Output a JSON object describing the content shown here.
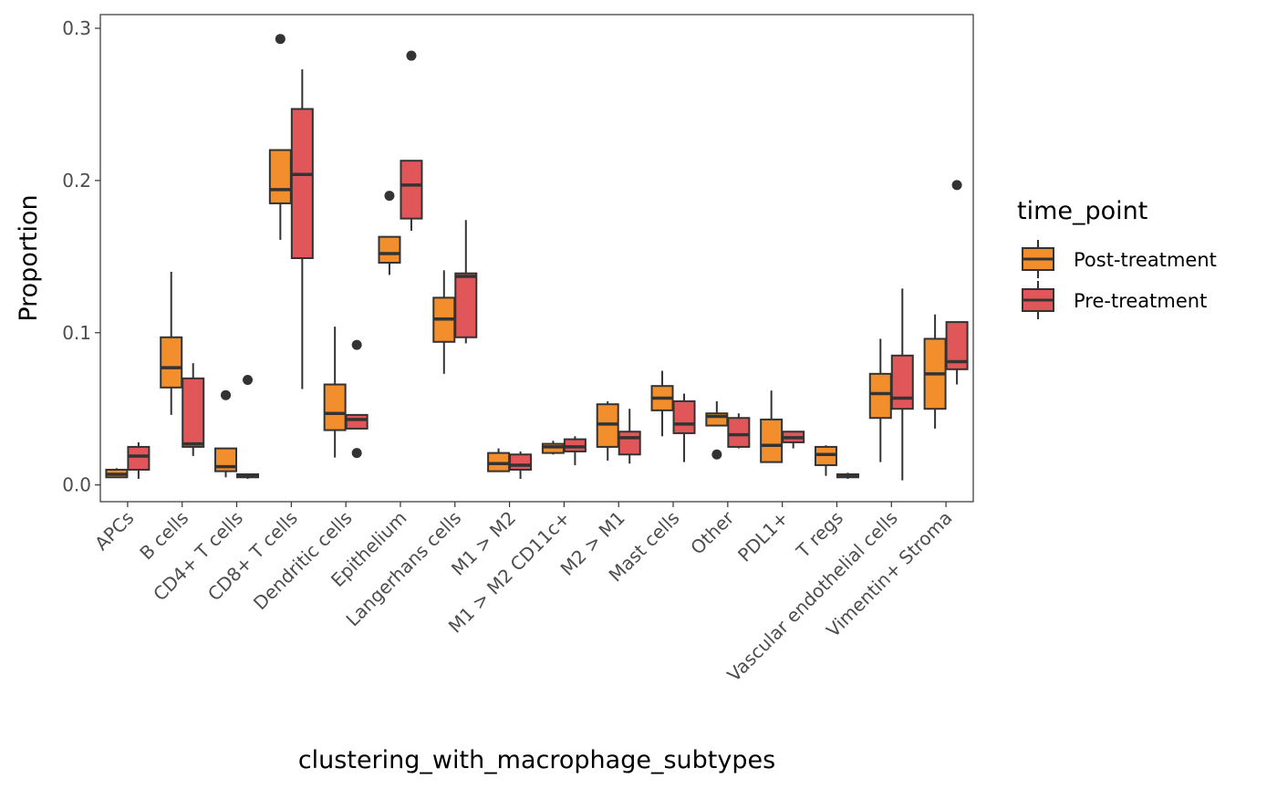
{
  "chart_data": {
    "type": "boxplot",
    "xlabel": "clustering_with_macrophage_subtypes",
    "ylabel": "Proportion",
    "ylim": [
      -0.011,
      0.309
    ],
    "yticks": [
      "0.0",
      "0.1",
      "0.2",
      "0.3"
    ],
    "ytick_values": [
      0.0,
      0.1,
      0.2,
      0.3
    ],
    "grid": false,
    "legend_position": "right",
    "legend_title": "time_point",
    "categories": [
      "APCs",
      "B cells",
      "CD4+ T cells",
      "CD8+ T cells",
      "Dendritic cells",
      "Epithelium",
      "Langerhans cells",
      "M1 > M2",
      "M1 > M2 CD11c+",
      "M2 > M1",
      "Mast cells",
      "Other",
      "PDL1+",
      "T regs",
      "Vascular endothelial cells",
      "Vimentin+ Stroma"
    ],
    "series": [
      {
        "name": "Post-treatment",
        "color": "#F28E2B",
        "boxes": [
          {
            "min": 0.005,
            "q1": 0.005,
            "median": 0.007,
            "q3": 0.01,
            "max": 0.011,
            "outliers": []
          },
          {
            "min": 0.046,
            "q1": 0.064,
            "median": 0.077,
            "q3": 0.097,
            "max": 0.14,
            "outliers": []
          },
          {
            "min": 0.005,
            "q1": 0.009,
            "median": 0.012,
            "q3": 0.024,
            "max": 0.024,
            "outliers": [
              0.059
            ]
          },
          {
            "min": 0.161,
            "q1": 0.185,
            "median": 0.194,
            "q3": 0.22,
            "max": 0.22,
            "outliers": [
              0.293
            ]
          },
          {
            "min": 0.018,
            "q1": 0.036,
            "median": 0.047,
            "q3": 0.066,
            "max": 0.104,
            "outliers": []
          },
          {
            "min": 0.138,
            "q1": 0.146,
            "median": 0.152,
            "q3": 0.163,
            "max": 0.163,
            "outliers": [
              0.19
            ]
          },
          {
            "min": 0.073,
            "q1": 0.094,
            "median": 0.109,
            "q3": 0.123,
            "max": 0.141,
            "outliers": []
          },
          {
            "min": 0.009,
            "q1": 0.009,
            "median": 0.014,
            "q3": 0.021,
            "max": 0.024,
            "outliers": []
          },
          {
            "min": 0.02,
            "q1": 0.021,
            "median": 0.025,
            "q3": 0.027,
            "max": 0.029,
            "outliers": []
          },
          {
            "min": 0.016,
            "q1": 0.025,
            "median": 0.04,
            "q3": 0.053,
            "max": 0.055,
            "outliers": []
          },
          {
            "min": 0.032,
            "q1": 0.049,
            "median": 0.057,
            "q3": 0.065,
            "max": 0.075,
            "outliers": []
          },
          {
            "min": 0.039,
            "q1": 0.039,
            "median": 0.045,
            "q3": 0.047,
            "max": 0.055,
            "outliers": [
              0.02
            ]
          },
          {
            "min": 0.015,
            "q1": 0.015,
            "median": 0.026,
            "q3": 0.043,
            "max": 0.062,
            "outliers": []
          },
          {
            "min": 0.006,
            "q1": 0.013,
            "median": 0.02,
            "q3": 0.025,
            "max": 0.026,
            "outliers": []
          },
          {
            "min": 0.015,
            "q1": 0.044,
            "median": 0.06,
            "q3": 0.073,
            "max": 0.096,
            "outliers": []
          },
          {
            "min": 0.037,
            "q1": 0.05,
            "median": 0.073,
            "q3": 0.096,
            "max": 0.112,
            "outliers": []
          }
        ]
      },
      {
        "name": "Pre-treatment",
        "color": "#E15759",
        "boxes": [
          {
            "min": 0.004,
            "q1": 0.01,
            "median": 0.019,
            "q3": 0.025,
            "max": 0.028,
            "outliers": []
          },
          {
            "min": 0.019,
            "q1": 0.025,
            "median": 0.027,
            "q3": 0.07,
            "max": 0.08,
            "outliers": []
          },
          {
            "min": 0.004,
            "q1": 0.005,
            "median": 0.006,
            "q3": 0.007,
            "max": 0.007,
            "outliers": [
              0.069
            ]
          },
          {
            "min": 0.063,
            "q1": 0.149,
            "median": 0.204,
            "q3": 0.247,
            "max": 0.273,
            "outliers": []
          },
          {
            "min": 0.037,
            "q1": 0.037,
            "median": 0.043,
            "q3": 0.046,
            "max": 0.046,
            "outliers": [
              0.092,
              0.021
            ]
          },
          {
            "min": 0.167,
            "q1": 0.175,
            "median": 0.197,
            "q3": 0.213,
            "max": 0.213,
            "outliers": [
              0.282
            ]
          },
          {
            "min": 0.093,
            "q1": 0.097,
            "median": 0.137,
            "q3": 0.139,
            "max": 0.174,
            "outliers": []
          },
          {
            "min": 0.004,
            "q1": 0.01,
            "median": 0.013,
            "q3": 0.02,
            "max": 0.022,
            "outliers": []
          },
          {
            "min": 0.013,
            "q1": 0.022,
            "median": 0.025,
            "q3": 0.03,
            "max": 0.032,
            "outliers": []
          },
          {
            "min": 0.014,
            "q1": 0.02,
            "median": 0.031,
            "q3": 0.035,
            "max": 0.05,
            "outliers": []
          },
          {
            "min": 0.015,
            "q1": 0.034,
            "median": 0.04,
            "q3": 0.055,
            "max": 0.06,
            "outliers": []
          },
          {
            "min": 0.024,
            "q1": 0.025,
            "median": 0.033,
            "q3": 0.044,
            "max": 0.047,
            "outliers": []
          },
          {
            "min": 0.024,
            "q1": 0.028,
            "median": 0.031,
            "q3": 0.035,
            "max": 0.035,
            "outliers": []
          },
          {
            "min": 0.004,
            "q1": 0.005,
            "median": 0.006,
            "q3": 0.007,
            "max": 0.008,
            "outliers": []
          },
          {
            "min": 0.003,
            "q1": 0.05,
            "median": 0.057,
            "q3": 0.085,
            "max": 0.129,
            "outliers": []
          },
          {
            "min": 0.066,
            "q1": 0.076,
            "median": 0.081,
            "q3": 0.107,
            "max": 0.107,
            "outliers": [
              0.197
            ]
          }
        ]
      }
    ]
  }
}
